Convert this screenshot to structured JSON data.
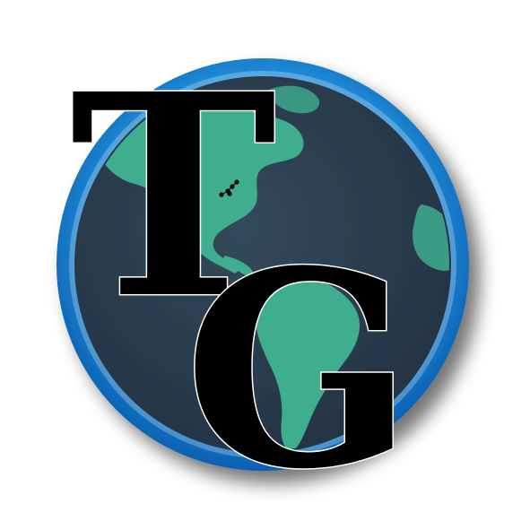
{
  "logo": {
    "monogram": {
      "letter_1": "T",
      "letter_2": "G"
    },
    "colors": {
      "background": "#ffffff",
      "ring_outer": "#1f8fe0",
      "ring_inner": "#4fc3ff",
      "ocean": "#2c3e4f",
      "land": "#3fae8f",
      "letters": "#000000",
      "letter_outline": "#ffffff"
    },
    "icons": {
      "globe": "globe-icon",
      "constellation": "small-dots-constellation"
    }
  }
}
